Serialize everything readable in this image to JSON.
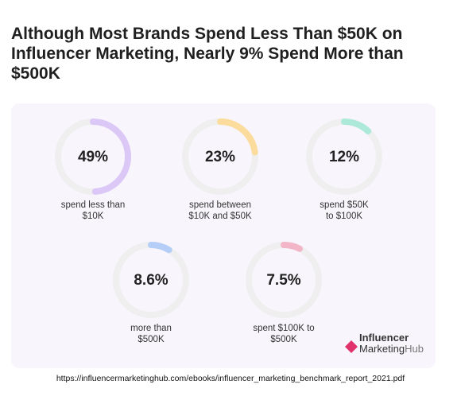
{
  "chart_data": {
    "type": "gauge",
    "title": "Although Most Brands Spend Less Than $50K on Influencer Marketing, Nearly 9% Spend More than $500K",
    "categories": [
      "spend less than\n$10K",
      "spend between\n$10K and $50K",
      "spend $50K\nto $100K",
      "more than\n$500K",
      "spent $100K to\n$500K"
    ],
    "values": [
      49,
      23,
      12,
      8.6,
      7.5
    ],
    "value_labels": [
      "49%",
      "23%",
      "12%",
      "8.6%",
      "7.5%"
    ],
    "colors": [
      "#dcc8f7",
      "#fcdc9c",
      "#ace9d8",
      "#b5cef7",
      "#f3b6c8"
    ],
    "source": "https://influencermarketinghub.com/ebooks/influencer_marketing_benchmark_report_2021.pdf",
    "logo": {
      "top": "Influencer",
      "bottom": "Marketing",
      "suffix": "Hub"
    }
  }
}
